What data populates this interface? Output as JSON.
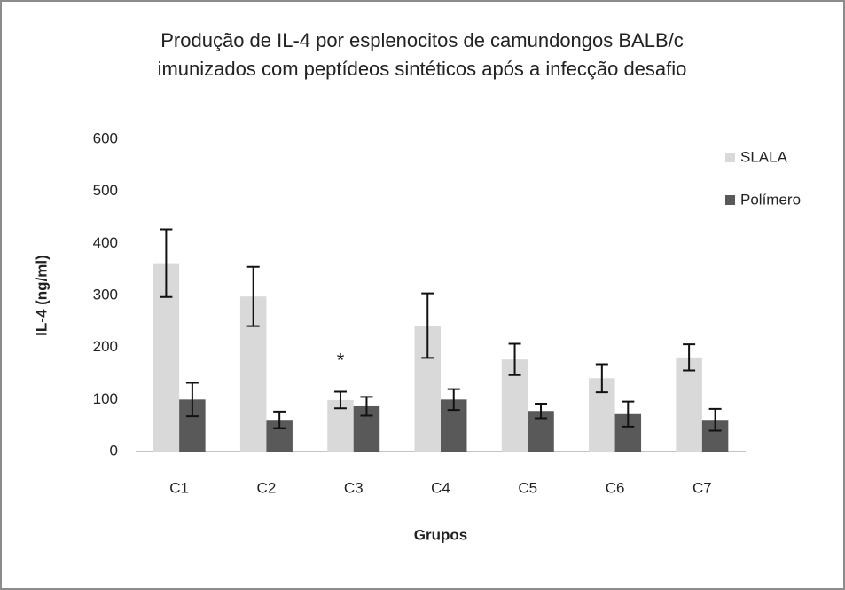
{
  "chart_data": {
    "type": "bar",
    "title": [
      "Produção de IL-4 por esplenocitos de camundongos BALB/c",
      "imunizados com peptídeos sintéticos após a infecção desafio"
    ],
    "x_label": "Grupos",
    "y_label": "IL-4 (ng/ml)",
    "categories": [
      "C1",
      "C2",
      "C3",
      "C4",
      "C5",
      "C6",
      "C7"
    ],
    "series": [
      {
        "name": "SLALA",
        "color": "#d9d9d9",
        "values": [
          362,
          298,
          99,
          242,
          177,
          141,
          181
        ],
        "errors": [
          65,
          57,
          16,
          62,
          30,
          27,
          25
        ]
      },
      {
        "name": "Polímero",
        "color": "#595959",
        "values": [
          100,
          61,
          87,
          100,
          78,
          72,
          61
        ],
        "errors": [
          32,
          16,
          18,
          20,
          14,
          24,
          21
        ]
      }
    ],
    "annotations": [
      {
        "text": "*",
        "category": "C3"
      }
    ],
    "ylim": [
      0,
      600
    ],
    "yticks": [
      0,
      100,
      200,
      300,
      400,
      500,
      600
    ],
    "grid": false,
    "legend": "right"
  }
}
